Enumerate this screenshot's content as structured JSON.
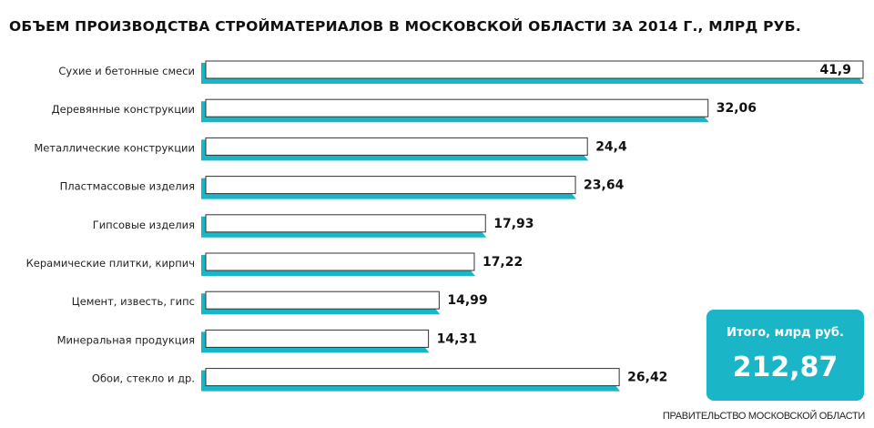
{
  "title": "ОБЪЕМ ПРОИЗВОДСТВА СТРОЙМАТЕРИАЛОВ В МОСКОВСКОЙ ОБЛАСТИ ЗА 2014 Г., МЛРД РУБ.",
  "total": {
    "label": "Итого, млрд руб.",
    "value": "212,87"
  },
  "source": "ПРАВИТЕЛЬСТВО МОСКОВСКОЙ ОБЛАСТИ",
  "colors": {
    "accent": "#1ab5c6",
    "bar_fill": "#ffffff",
    "bar_outline": "#333333"
  },
  "chart_data": {
    "type": "bar",
    "orientation": "horizontal",
    "title": "ОБЪЕМ ПРОИЗВОДСТВА СТРОЙМАТЕРИАЛОВ В МОСКОВСКОЙ ОБЛАСТИ ЗА 2014 Г., МЛРД РУБ.",
    "categories": [
      "Сухие и бетонные смеси",
      "Деревянные конструкции",
      "Металлические конструкции",
      "Пластмассовые изделия",
      "Гипсовые изделия",
      "Керамические плитки, кирпич",
      "Цемент, известь, гипс",
      "Минеральная продукция",
      "Обои, стекло и др."
    ],
    "values": [
      41.9,
      32.06,
      24.4,
      23.64,
      17.93,
      17.22,
      14.99,
      14.31,
      26.42
    ],
    "value_labels": [
      "41,9",
      "32,06",
      "24,4",
      "23,64",
      "17,93",
      "17,22",
      "14,99",
      "14,31",
      "26,42"
    ],
    "xlim": [
      0,
      41.9
    ],
    "grid": false,
    "legend": "none"
  }
}
